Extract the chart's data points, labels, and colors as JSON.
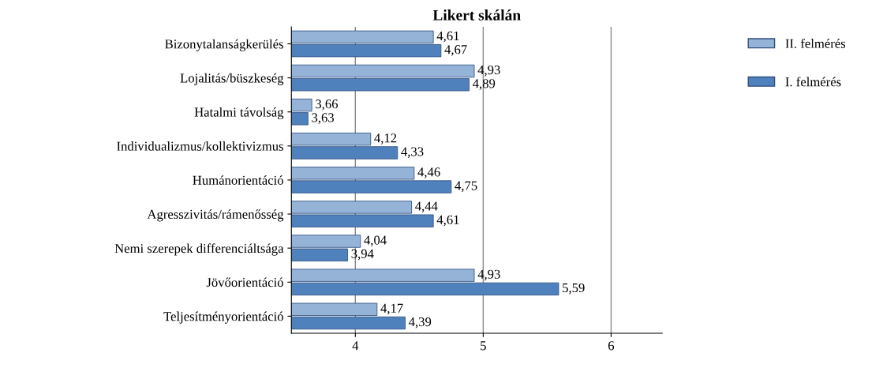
{
  "chart_data": {
    "type": "bar",
    "orientation": "horizontal",
    "title": "Likert skálán",
    "categories": [
      "Bizonytalanságkerülés",
      "Lojalitás/büszkeség",
      "Hatalmi távolság",
      "Individualizmus/kollektivizmus",
      "Humánorientáció",
      "Agresszivitás/rámenősség",
      "Nemi szerepek differenciáltsága",
      "Jövőorientáció",
      "Teljesítményorientáció"
    ],
    "series": [
      {
        "name": "II. felmérés",
        "color": "#95b3d7",
        "values": [
          4.61,
          4.93,
          3.66,
          4.12,
          4.46,
          4.44,
          4.04,
          4.93,
          4.17
        ],
        "value_labels": [
          "4,61",
          "4,93",
          "3,66",
          "4,12",
          "4,46",
          "4,44",
          "4,04",
          "4,93",
          "4,17"
        ]
      },
      {
        "name": "I. felmérés",
        "color": "#4f81bd",
        "values": [
          4.67,
          4.89,
          3.63,
          4.33,
          4.75,
          4.61,
          3.94,
          5.59,
          4.39
        ],
        "value_labels": [
          "4,67",
          "4,89",
          "3,63",
          "4,33",
          "4,75",
          "4,61",
          "3,94",
          "5,59",
          "4,39"
        ]
      }
    ],
    "xlim": [
      3.5,
      6.4
    ],
    "xticks": [
      4,
      5,
      6
    ],
    "grid": "x",
    "legend": "top right"
  }
}
